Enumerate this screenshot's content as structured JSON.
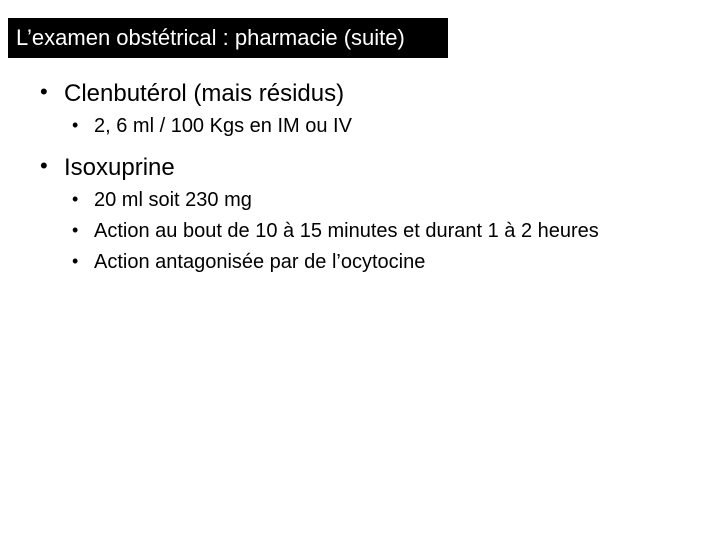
{
  "title": "L’examen obstétrical : pharmacie (suite)",
  "items": [
    {
      "label": "Clenbutérol (mais résidus)",
      "sub": [
        "2, 6 ml / 100 Kgs en IM ou IV"
      ]
    },
    {
      "label": "Isoxuprine",
      "sub": [
        "20 ml soit 230 mg",
        "Action au bout de 10 à 15 minutes et durant 1 à 2 heures",
        "Action antagonisée par de l’ocytocine"
      ]
    }
  ],
  "colors": {
    "title_bg": "#000000",
    "title_text": "#ffffff",
    "body_text": "#000000",
    "slide_bg": "#ffffff"
  },
  "typography": {
    "title_fontsize": 22,
    "lvl1_fontsize": 24,
    "lvl2_fontsize": 20,
    "font_family": "Arial"
  }
}
